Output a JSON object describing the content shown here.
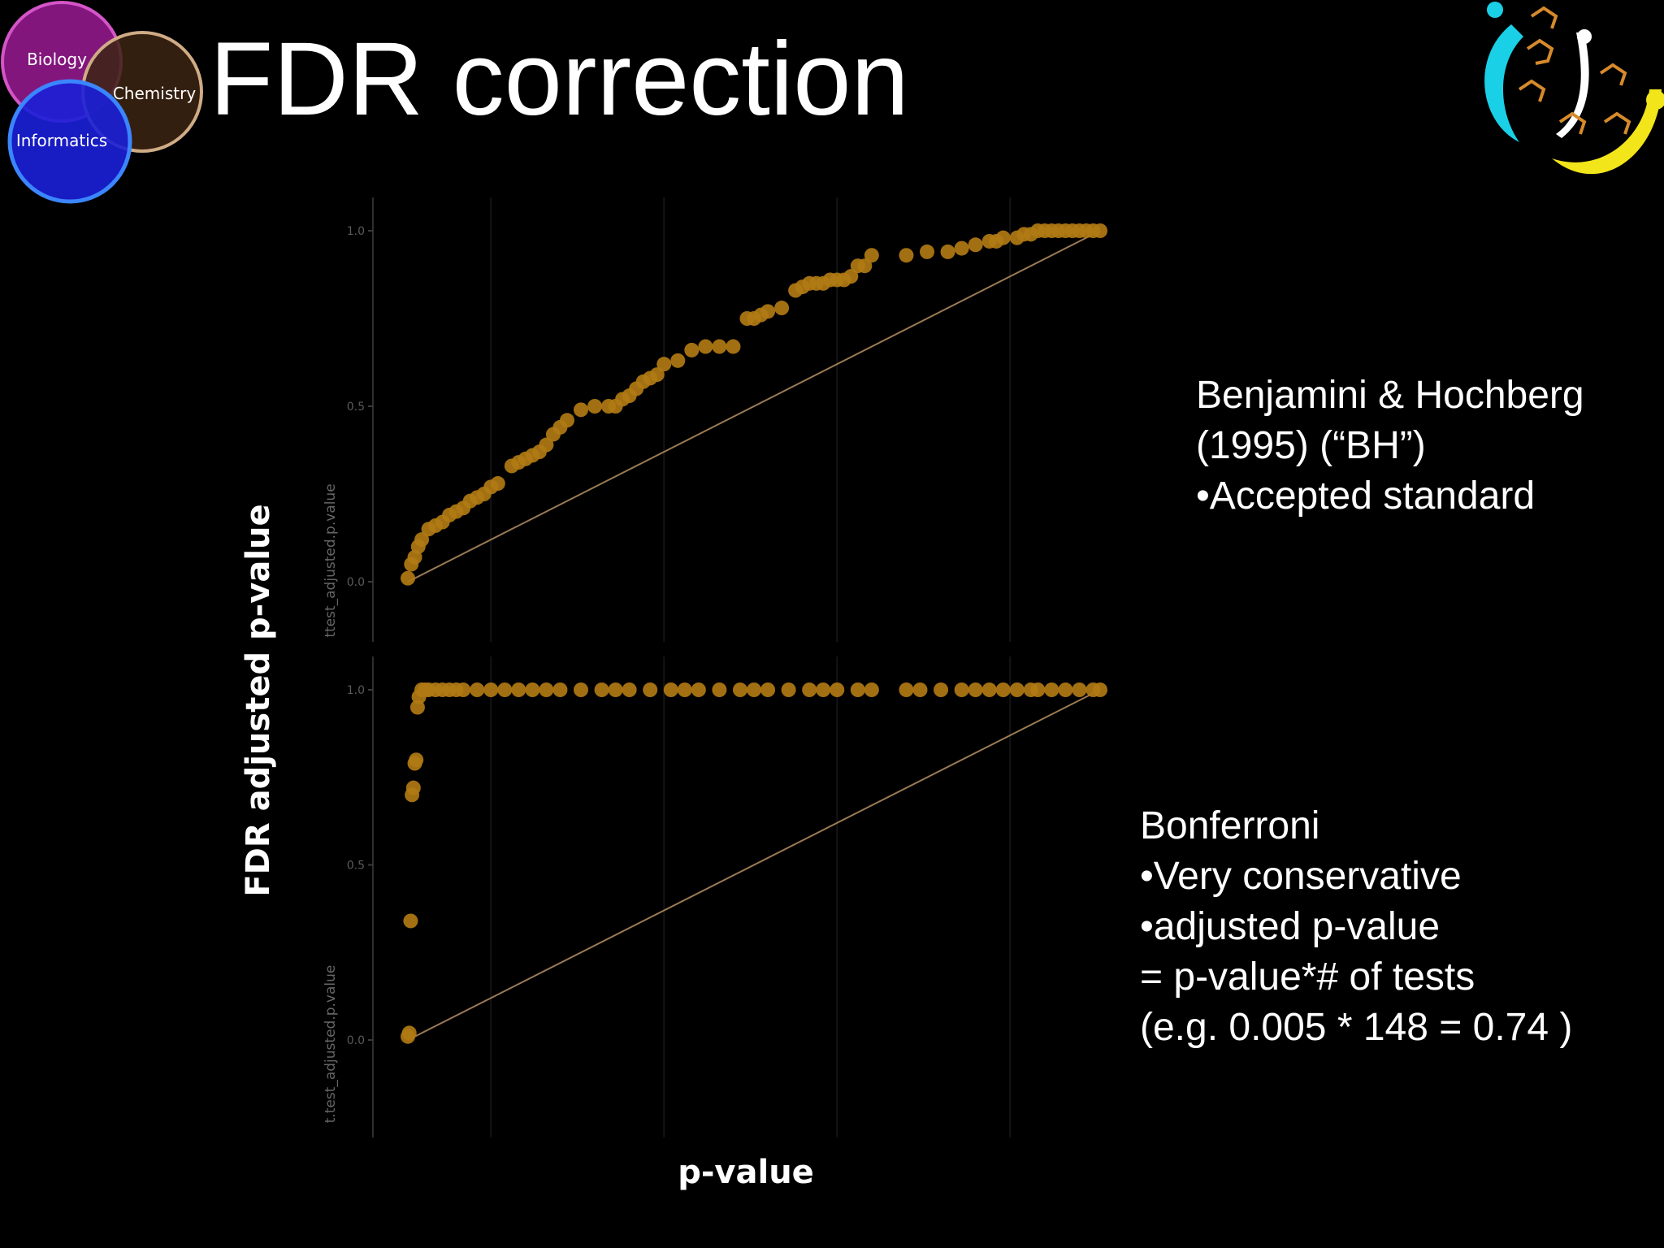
{
  "slide": {
    "title": "FDR correction",
    "venn": {
      "circles": [
        {
          "label": "Biology",
          "color": "#c43cb4"
        },
        {
          "label": "Chemistry",
          "color": "#c9a582"
        },
        {
          "label": "Informatics",
          "color": "#2f5bff"
        }
      ]
    },
    "y_axis_label": "FDR adjusted p-value",
    "x_axis_label": "p-value",
    "notes": {
      "bh": [
        "Benjamini & Hochberg",
        "(1995) (“BH”)",
        "•Accepted standard"
      ],
      "bonferroni": [
        "Bonferroni",
        "•Very conservative",
        "•adjusted p-value",
        "= p-value*# of tests",
        "(e.g. 0.005 * 148 = 0.74 )"
      ]
    },
    "colors": {
      "background": "#000000",
      "point": "#b07a14",
      "line": "#9a7a55",
      "text": "#ffffff"
    }
  },
  "chart_data": [
    {
      "type": "scatter",
      "title": "",
      "xlabel": "",
      "ylabel": "ttest_adjusted.p.value",
      "ylim": [
        0,
        1
      ],
      "y_ticks": [
        "0.0",
        "0.5",
        "1.0"
      ],
      "xlim": [
        0,
        1
      ],
      "diagonal_reference": true,
      "x": [
        0.0,
        0.005,
        0.01,
        0.015,
        0.02,
        0.03,
        0.04,
        0.05,
        0.06,
        0.07,
        0.08,
        0.09,
        0.1,
        0.11,
        0.12,
        0.13,
        0.15,
        0.16,
        0.17,
        0.18,
        0.19,
        0.2,
        0.21,
        0.22,
        0.23,
        0.25,
        0.27,
        0.29,
        0.3,
        0.31,
        0.32,
        0.33,
        0.34,
        0.35,
        0.36,
        0.37,
        0.39,
        0.41,
        0.43,
        0.45,
        0.47,
        0.49,
        0.5,
        0.51,
        0.52,
        0.54,
        0.56,
        0.57,
        0.58,
        0.59,
        0.6,
        0.61,
        0.62,
        0.63,
        0.64,
        0.65,
        0.66,
        0.67,
        0.72,
        0.75,
        0.78,
        0.8,
        0.82,
        0.84,
        0.85,
        0.86,
        0.88,
        0.89,
        0.9,
        0.91,
        0.92,
        0.93,
        0.94,
        0.95,
        0.96,
        0.97,
        0.98,
        0.99,
        1.0
      ],
      "y": [
        0.01,
        0.05,
        0.07,
        0.1,
        0.12,
        0.15,
        0.16,
        0.17,
        0.19,
        0.2,
        0.21,
        0.23,
        0.24,
        0.25,
        0.27,
        0.28,
        0.33,
        0.34,
        0.35,
        0.36,
        0.37,
        0.39,
        0.42,
        0.44,
        0.46,
        0.49,
        0.5,
        0.5,
        0.5,
        0.52,
        0.53,
        0.55,
        0.57,
        0.58,
        0.59,
        0.62,
        0.63,
        0.66,
        0.67,
        0.67,
        0.67,
        0.75,
        0.75,
        0.76,
        0.77,
        0.78,
        0.83,
        0.84,
        0.85,
        0.85,
        0.85,
        0.86,
        0.86,
        0.86,
        0.87,
        0.9,
        0.9,
        0.93,
        0.93,
        0.94,
        0.94,
        0.95,
        0.96,
        0.97,
        0.97,
        0.98,
        0.98,
        0.99,
        0.99,
        1.0,
        1.0,
        1.0,
        1.0,
        1.0,
        1.0,
        1.0,
        1.0,
        1.0,
        1.0
      ]
    },
    {
      "type": "scatter",
      "title": "",
      "xlabel": "",
      "ylabel": "t.test_adjusted.p.value",
      "ylim": [
        0,
        1
      ],
      "y_ticks": [
        "0.0",
        "0.5",
        "1.0"
      ],
      "xlim": [
        0,
        1
      ],
      "diagonal_reference": true,
      "x": [
        0.0,
        0.002,
        0.004,
        0.006,
        0.008,
        0.01,
        0.012,
        0.014,
        0.016,
        0.02,
        0.025,
        0.03,
        0.04,
        0.05,
        0.06,
        0.07,
        0.08,
        0.1,
        0.12,
        0.14,
        0.16,
        0.18,
        0.2,
        0.22,
        0.25,
        0.28,
        0.3,
        0.32,
        0.35,
        0.38,
        0.4,
        0.42,
        0.45,
        0.48,
        0.5,
        0.52,
        0.55,
        0.58,
        0.6,
        0.62,
        0.65,
        0.67,
        0.72,
        0.74,
        0.77,
        0.8,
        0.82,
        0.84,
        0.86,
        0.88,
        0.9,
        0.91,
        0.93,
        0.95,
        0.97,
        0.99,
        1.0
      ],
      "y": [
        0.01,
        0.02,
        0.34,
        0.7,
        0.72,
        0.79,
        0.8,
        0.95,
        0.98,
        1.0,
        1.0,
        1.0,
        1.0,
        1.0,
        1.0,
        1.0,
        1.0,
        1.0,
        1.0,
        1.0,
        1.0,
        1.0,
        1.0,
        1.0,
        1.0,
        1.0,
        1.0,
        1.0,
        1.0,
        1.0,
        1.0,
        1.0,
        1.0,
        1.0,
        1.0,
        1.0,
        1.0,
        1.0,
        1.0,
        1.0,
        1.0,
        1.0,
        1.0,
        1.0,
        1.0,
        1.0,
        1.0,
        1.0,
        1.0,
        1.0,
        1.0,
        1.0,
        1.0,
        1.0,
        1.0,
        1.0,
        1.0
      ]
    }
  ]
}
